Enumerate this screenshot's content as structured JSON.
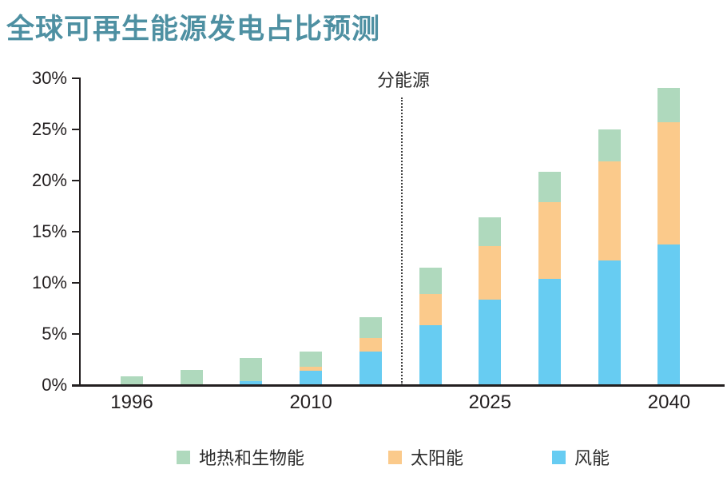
{
  "page": {
    "title": "全球可再生能源发电占比预测"
  },
  "chart_data": {
    "type": "bar",
    "stacked": true,
    "stack_order": "bottom-to-top",
    "title": "全球可再生能源发电占比预测",
    "annotation": "分能源",
    "bar_count": 10,
    "x_tick_labels": [
      "1996",
      "",
      "",
      "2010",
      "",
      "",
      "2025",
      "",
      "",
      "2040"
    ],
    "yticks": [
      "0%",
      "5%",
      "10%",
      "15%",
      "20%",
      "25%",
      "30%"
    ],
    "ylim": [
      0,
      30
    ],
    "y_unit": "%",
    "grid": false,
    "divider_after_bar_index": 4,
    "series": [
      {
        "name": "风能",
        "slug": "wind",
        "color": "#67ccf2",
        "values": [
          0,
          0,
          0.3,
          1.3,
          3.2,
          5.8,
          8.3,
          10.3,
          12.1,
          13.7
        ]
      },
      {
        "name": "太阳能",
        "slug": "solar",
        "color": "#fbca8b",
        "values": [
          0,
          0,
          0,
          0.4,
          1.3,
          3.0,
          5.2,
          7.5,
          9.7,
          11.9
        ]
      },
      {
        "name": "地热和生物能",
        "slug": "geo-bio",
        "color": "#afd9bd",
        "values": [
          0.8,
          1.4,
          2.3,
          1.5,
          2.1,
          2.6,
          2.8,
          3.0,
          3.1,
          3.4
        ]
      }
    ],
    "totals": [
      0.8,
      1.4,
      2.6,
      3.2,
      6.6,
      11.4,
      16.3,
      20.8,
      24.9,
      29.0
    ],
    "legend": [
      {
        "label": "地热和生物能",
        "color": "#afd9bd"
      },
      {
        "label": "太阳能",
        "color": "#fbca8b"
      },
      {
        "label": "风能",
        "color": "#67ccf2"
      }
    ],
    "legend_position": "bottom",
    "colors": {
      "title": "#4e90a2",
      "axis": "#231f20",
      "text": "#2e2e2e",
      "background": "#ffffff"
    }
  }
}
